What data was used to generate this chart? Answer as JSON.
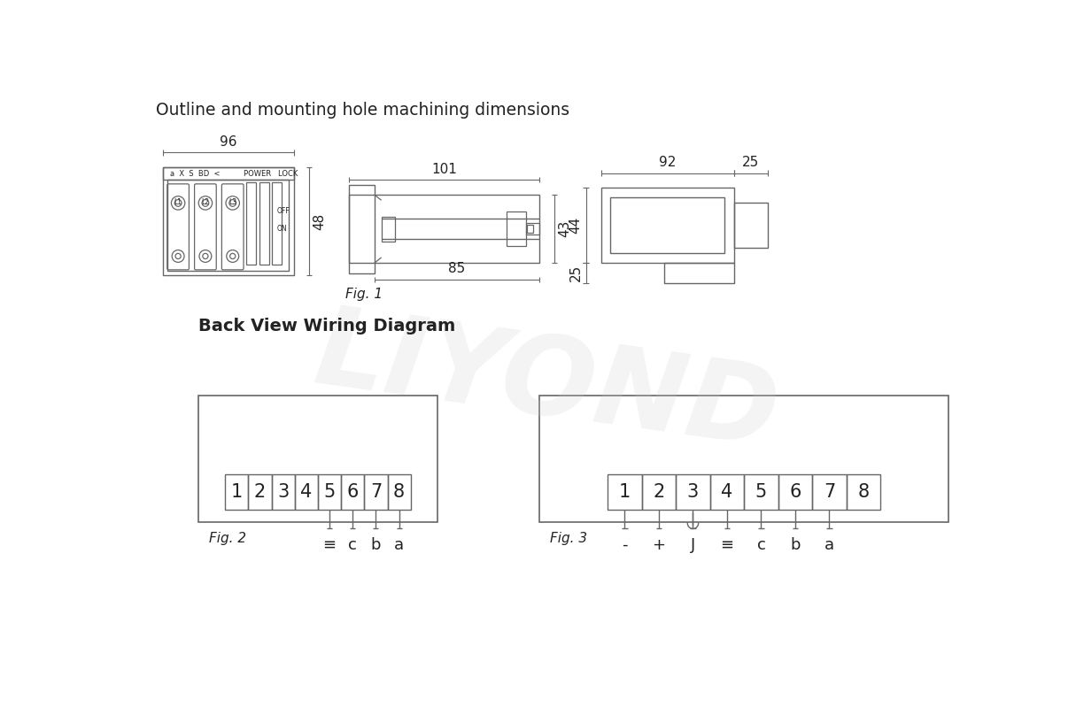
{
  "title": "Outline and mounting hole machining dimensions",
  "subtitle": "Back View Wiring Diagram",
  "bg_color": "#ffffff",
  "line_color": "#666666",
  "text_color": "#222222",
  "dim_color": "#666666",
  "watermark": "LIYOND",
  "fig1_label": "Fig. 1",
  "fig2_label": "Fig. 2",
  "fig3_label": "Fig. 3",
  "dim_96": "96",
  "dim_48": "48",
  "dim_101": "101",
  "dim_85": "85",
  "dim_43": "43",
  "dim_44": "44",
  "dim_92": "92",
  "dim_25t": "25",
  "dim_25s": "25"
}
